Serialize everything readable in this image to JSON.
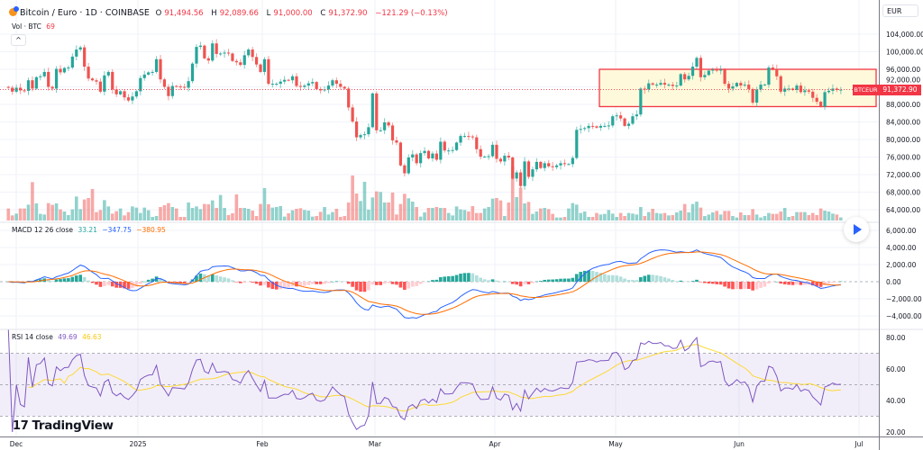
{
  "header": {
    "symbol": "Bitcoin / Euro · 1D · COINBASE",
    "open_label": "O",
    "open": "91,494.56",
    "high_label": "H",
    "high": "92,089.66",
    "low_label": "L",
    "low": "91,000.00",
    "close_label": "C",
    "close": "91,372.90",
    "change": "−121.29 (−0.13%)",
    "volume_label": "Vol · BTC",
    "volume_value": "69"
  },
  "currency_button": "EUR",
  "price_tag": {
    "symbol": "BTCEUR",
    "price": "91,372.90"
  },
  "logo": {
    "mark": "17",
    "text": "TradingView"
  },
  "colors": {
    "up": "#26a69a",
    "down": "#ef5350",
    "macd": "#2962ff",
    "signal": "#ff6d00",
    "rsi": "#7e57c2",
    "rsi_ma": "#fdd835",
    "zone_fill": "#fff9db",
    "zone_border": "#f23645"
  },
  "chart_data": {
    "type": "candlestick",
    "x_ticks": [
      "Dec",
      "2025",
      "Feb",
      "Mar",
      "Apr",
      "May",
      "Jun",
      "Jul"
    ],
    "price_axis": {
      "currency": "EUR",
      "range": [
        62000,
        106000
      ],
      "ticks": [
        104000,
        100000,
        96000,
        92000,
        88000,
        84000,
        80000,
        76000,
        72000,
        68000,
        64000
      ],
      "tick_labels": [
        "104,000.00",
        "100,000.00",
        "96,000.00",
        "92,000.00",
        "88,000.00",
        "84,000.00",
        "80,000.00",
        "76,000.00",
        "72,000.00",
        "68,000.00",
        "64,000.00"
      ]
    },
    "last_price": 91372.9,
    "highlight_zone": {
      "price_range": [
        87500,
        96000
      ]
    },
    "close": [
      91800,
      90900,
      91800,
      91200,
      91100,
      93500,
      91600,
      94200,
      94400,
      95400,
      92000,
      91600,
      96100,
      95300,
      96300,
      96400,
      98900,
      100500,
      101000,
      96600,
      93900,
      93500,
      93200,
      90900,
      94600,
      95400,
      91400,
      90300,
      91000,
      89600,
      88900,
      89800,
      91000,
      94000,
      94800,
      95300,
      95400,
      98300,
      93700,
      92000,
      89900,
      92200,
      92100,
      92000,
      91800,
      93300,
      97300,
      101100,
      101400,
      98500,
      98000,
      101900,
      99500,
      99600,
      99800,
      99600,
      97900,
      97600,
      97000,
      99200,
      100500,
      98800,
      97100,
      95400,
      98300,
      92700,
      92700,
      92700,
      93200,
      93600,
      93500,
      94400,
      92200,
      92000,
      92300,
      92800,
      93100,
      91500,
      91200,
      91400,
      92300,
      93500,
      92700,
      92000,
      91600,
      87300,
      84100,
      80500,
      81000,
      81200,
      82800,
      90500,
      82100,
      82100,
      83900,
      83200,
      79800,
      79300,
      74100,
      72300,
      75900,
      76600,
      74600,
      76900,
      77400,
      75700,
      76800,
      75400,
      79500,
      77500,
      77500,
      77600,
      79300,
      80800,
      80800,
      80700,
      80500,
      77800,
      76100,
      76100,
      76200,
      78800,
      75600,
      75000,
      76300,
      75900,
      71100,
      72500,
      69400,
      75000,
      71500,
      73200,
      74900,
      73500,
      74600,
      73900,
      73700,
      74100,
      74600,
      74400,
      74400,
      75800,
      82200,
      82400,
      82600,
      83100,
      83000,
      82700,
      83100,
      83100,
      83200,
      85300,
      85500,
      84800,
      83100,
      83600,
      85300,
      85700,
      91600,
      91400,
      92800,
      92500,
      92500,
      92900,
      92500,
      92500,
      92200,
      92300,
      94900,
      93700,
      94500,
      96600,
      98600,
      94200,
      94700,
      95700,
      95900,
      95700,
      95900,
      92700,
      91600,
      92100,
      92900,
      92300,
      92500,
      91500,
      88400,
      91400,
      92500,
      92500,
      96400,
      96100,
      94400,
      90900,
      91600,
      91600,
      91300,
      92300,
      90800,
      91200,
      90900,
      89500,
      88600,
      87500,
      90800,
      91100,
      91600,
      91300,
      91372.9
    ],
    "volume": [
      267,
      113,
      153,
      267,
      267,
      353,
      853,
      380,
      147,
      133,
      387,
      347,
      380,
      247,
      200,
      120,
      247,
      533,
      253,
      467,
      500,
      700,
      187,
      233,
      453,
      313,
      153,
      207,
      267,
      113,
      187,
      313,
      287,
      167,
      287,
      227,
      80,
      100,
      300,
      340,
      387,
      300,
      267,
      80,
      80,
      400,
      280,
      313,
      253,
      367,
      360,
      447,
      280,
      567,
      280,
      120,
      160,
      580,
      280,
      280,
      260,
      220,
      100,
      367,
      720,
      360,
      287,
      300,
      320,
      87,
      160,
      227,
      260,
      273,
      233,
      220,
      87,
      100,
      193,
      300,
      133,
      187,
      260,
      80,
      100,
      400,
      1000,
      600,
      433,
      860,
      240,
      513,
      647,
      633,
      400,
      400,
      620,
      133,
      367,
      593,
      493,
      420,
      300,
      87,
      180,
      280,
      280,
      300,
      280,
      280,
      167,
      113,
      313,
      247,
      233,
      200,
      320,
      167,
      167,
      267,
      300,
      487,
      500,
      447,
      100,
      400,
      1200,
      520,
      733,
      380,
      413,
      147,
      200,
      267,
      280,
      253,
      147,
      67,
      67,
      80,
      267,
      387,
      353,
      167,
      200,
      80,
      80,
      167,
      133,
      147,
      233,
      153,
      80,
      167,
      100,
      167,
      153,
      133,
      300,
      100,
      187,
      260,
      167,
      153,
      167,
      113,
      120,
      180,
      220,
      367,
      180,
      367,
      420,
      287,
      100,
      133,
      180,
      213,
      133,
      213,
      213,
      100,
      67,
      180,
      120,
      120,
      253,
      133,
      67,
      100,
      167,
      147,
      147,
      200,
      280,
      80,
      100,
      187,
      187,
      187,
      120,
      167,
      120,
      267,
      220,
      200,
      153,
      133,
      69
    ],
    "macd": {
      "label": "MACD 12 26 close",
      "fast": 12,
      "slow": 26,
      "signal": 9,
      "histogram_value": "33.21",
      "macd_value": "−347.75",
      "signal_value": "−380.95",
      "range": [
        -5500,
        7000
      ],
      "ticks": [
        6000,
        4000,
        2000,
        0,
        -2000,
        -4000
      ],
      "tick_labels": [
        "6,000.00",
        "4,000.00",
        "2,000.00",
        "0.00",
        "−2,000.00",
        "−4,000.00"
      ]
    },
    "rsi": {
      "label": "RSI 14 close",
      "length": 14,
      "rsi_value": "49.69",
      "ma_value": "46.63",
      "band": [
        30,
        70
      ],
      "ticks": [
        80,
        60,
        40,
        20
      ],
      "tick_labels": [
        "80.00",
        "60.00",
        "40.00",
        "20.00"
      ]
    }
  }
}
